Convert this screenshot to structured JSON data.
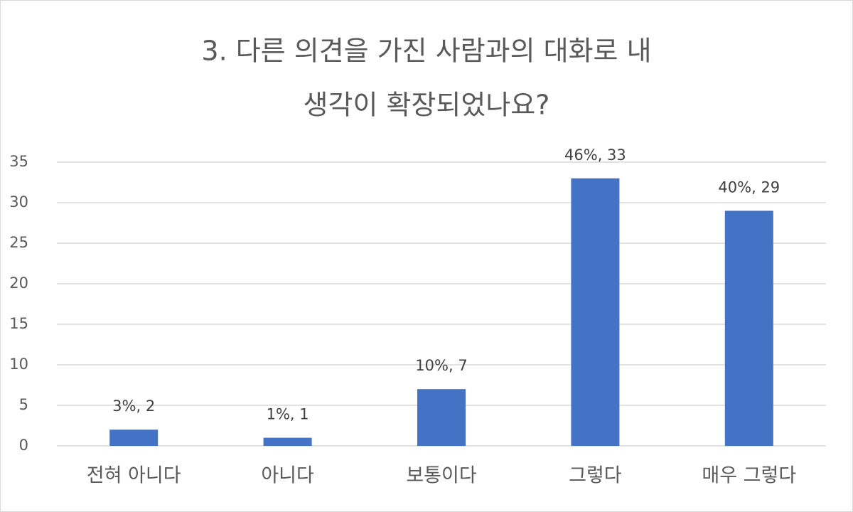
{
  "chart_data": {
    "type": "bar",
    "title": [
      "3. 다른 의견을 가진 사람과의 대화로 내",
      "생각이 확장되었나요?"
    ],
    "categories": [
      "전혀 아니다",
      "아니다",
      "보통이다",
      "그렇다",
      "매우 그렇다"
    ],
    "values": [
      2,
      1,
      7,
      33,
      29
    ],
    "value_labels": [
      "3%, 2",
      "1%, 1",
      "10%, 7",
      "46%, 33",
      "40%, 29"
    ],
    "color": "#4472c4",
    "ylim": [
      0,
      35
    ],
    "yticks": [
      0,
      5,
      10,
      15,
      20,
      25,
      30,
      35
    ],
    "grid": true
  }
}
